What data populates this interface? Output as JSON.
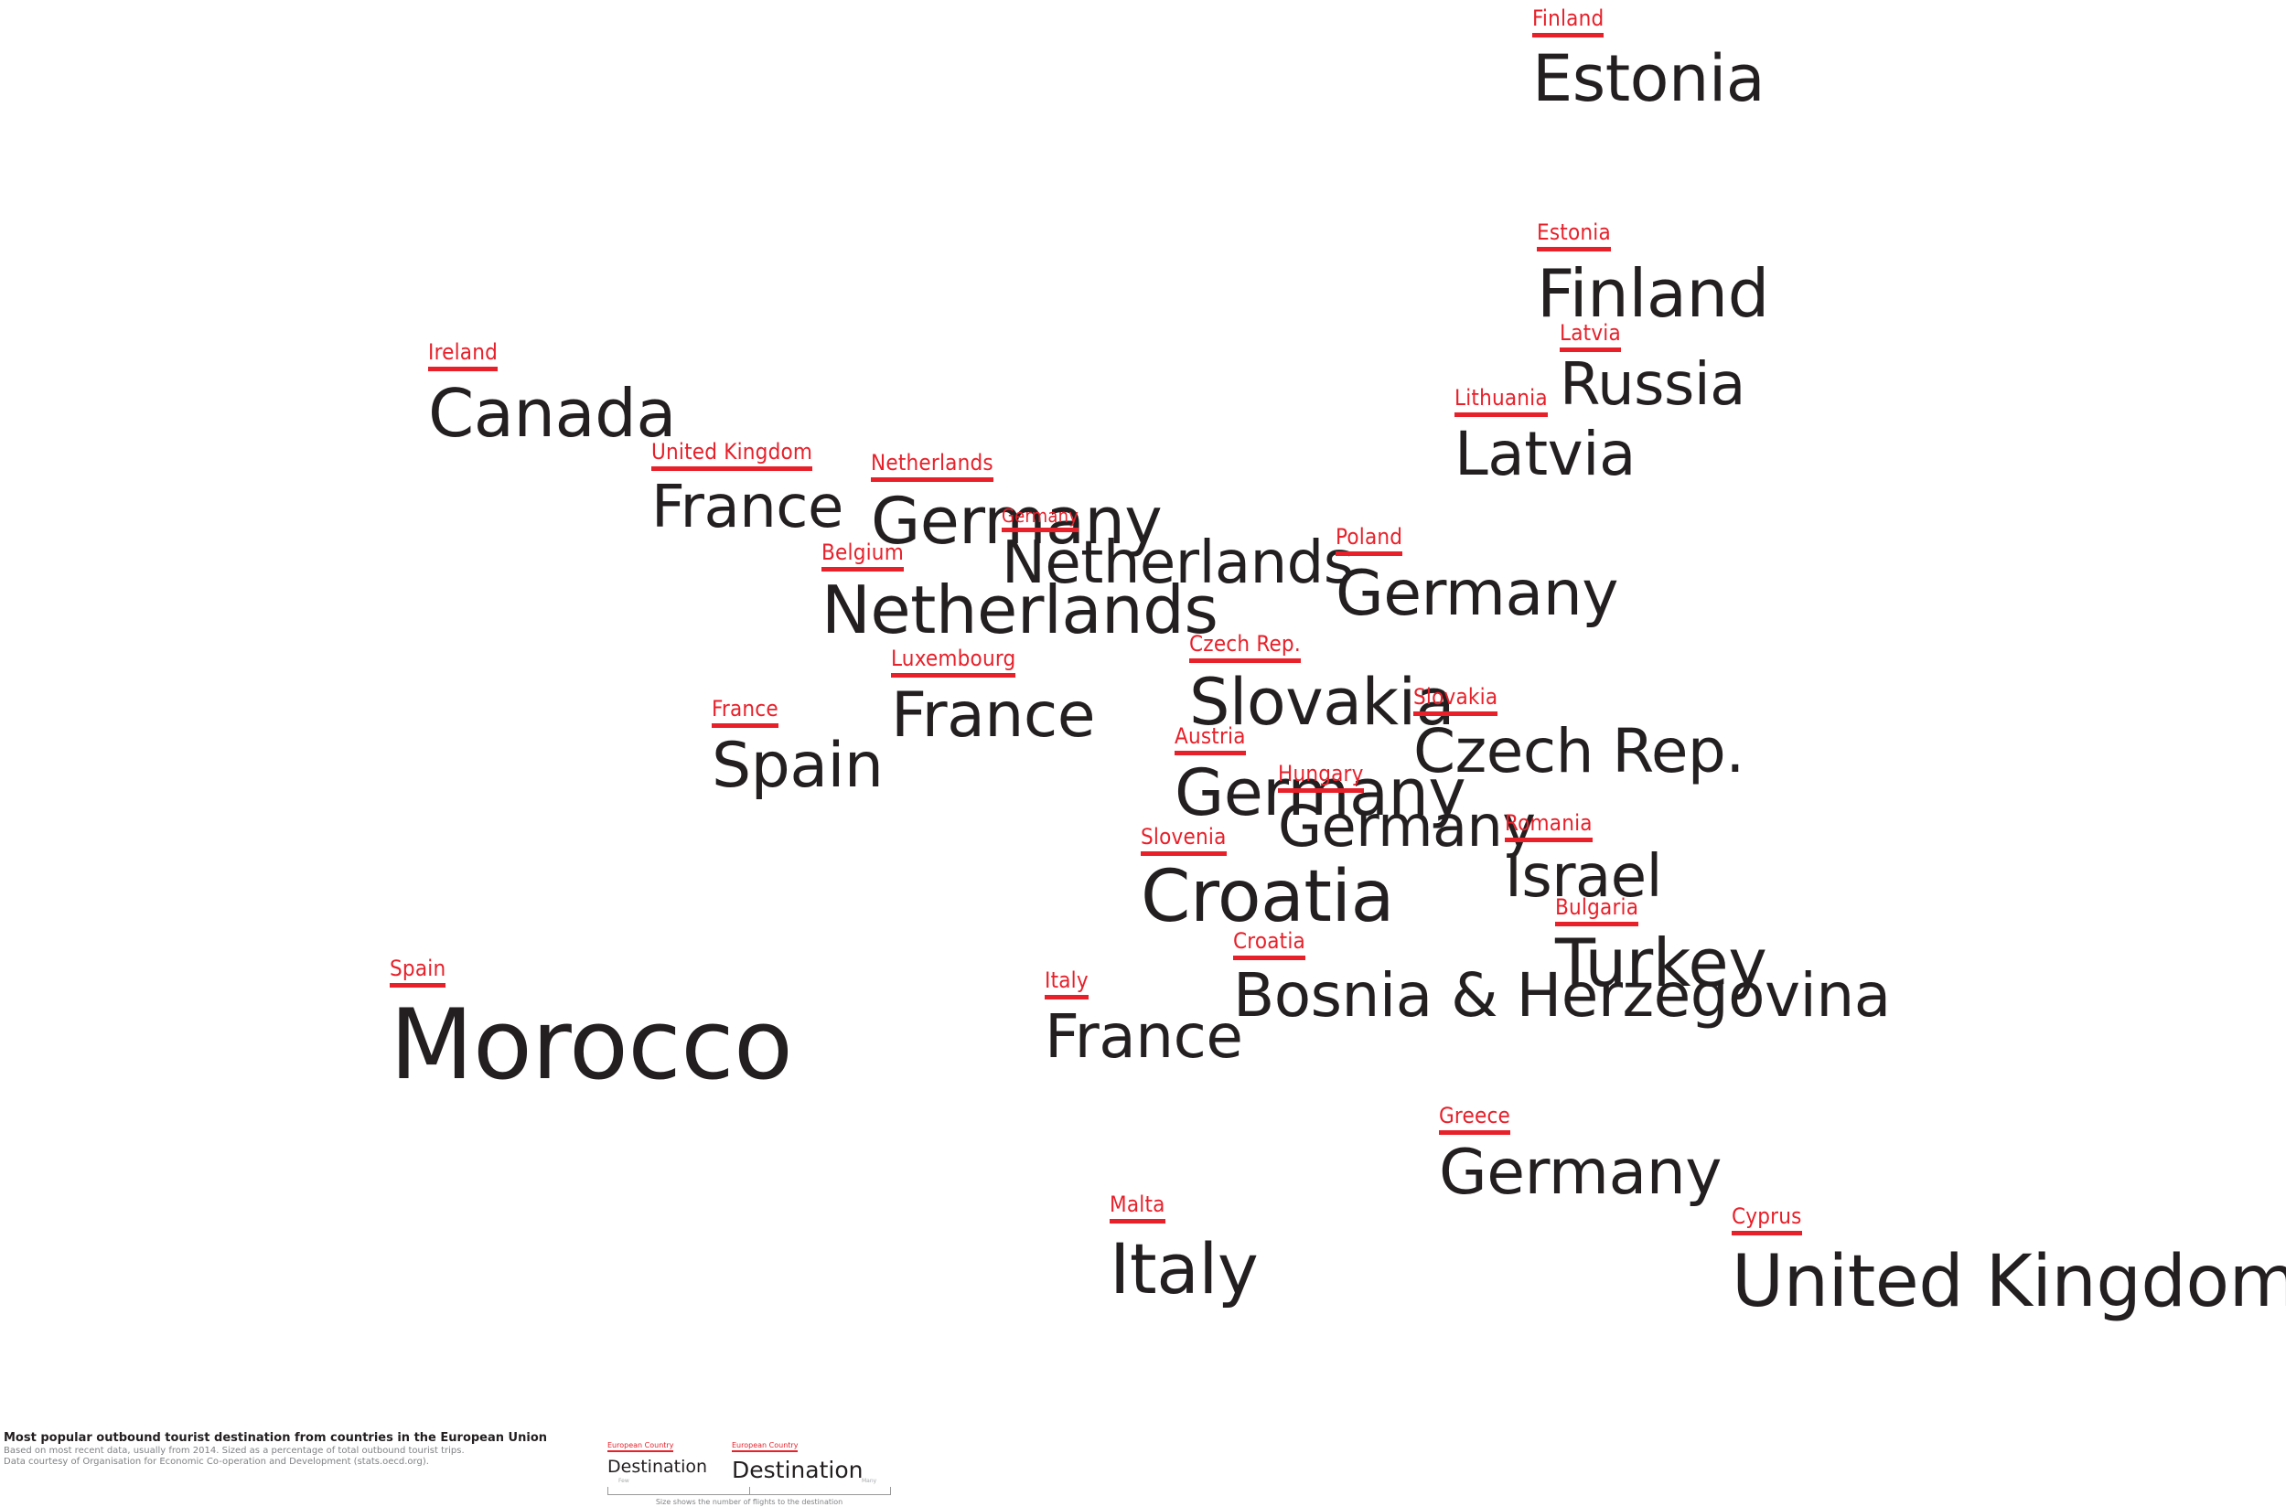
{
  "labels": [
    {
      "origin": "Finland",
      "destination": "Estonia"
    },
    {
      "origin": "Estonia",
      "destination": "Finland"
    },
    {
      "origin": "Latvia",
      "destination": "Russia"
    },
    {
      "origin": "Lithuania",
      "destination": "Latvia"
    },
    {
      "origin": "Ireland",
      "destination": "Canada"
    },
    {
      "origin": "United Kingdom",
      "destination": "France"
    },
    {
      "origin": "Netherlands",
      "destination": "Germany"
    },
    {
      "origin": "Germany",
      "destination": "Netherlands"
    },
    {
      "origin": "Belgium",
      "destination": "Netherlands"
    },
    {
      "origin": "Poland",
      "destination": "Germany"
    },
    {
      "origin": "Czech Rep.",
      "destination": "Slovakia"
    },
    {
      "origin": "Luxembourg",
      "destination": "France"
    },
    {
      "origin": "France",
      "destination": "Spain"
    },
    {
      "origin": "Slovakia",
      "destination": "Czech Rep."
    },
    {
      "origin": "Austria",
      "destination": "Germany"
    },
    {
      "origin": "Hungary",
      "destination": "Germany"
    },
    {
      "origin": "Romania",
      "destination": "Israel"
    },
    {
      "origin": "Slovenia",
      "destination": "Croatia"
    },
    {
      "origin": "Bulgaria",
      "destination": "Turkey"
    },
    {
      "origin": "Croatia",
      "destination": "Bosnia & Herzegovina"
    },
    {
      "origin": "Spain",
      "destination": "Morocco"
    },
    {
      "origin": "Italy",
      "destination": "France"
    },
    {
      "origin": "Greece",
      "destination": "Germany"
    },
    {
      "origin": "Cyprus",
      "destination": "United Kingdom"
    },
    {
      "origin": "Malta",
      "destination": "Italy"
    }
  ],
  "footer": {
    "title": "Most popular outbound tourist destination from countries in the European Union",
    "line1": "Based on most recent data, usually from 2014. Sized as a percentage of total outbound tourist trips.",
    "line2": "Data courtesy of Organisation for Economic Co-operation and Development (stats.oecd.org)."
  },
  "legend": {
    "origin_label": "European Country",
    "destination_label": "Destination",
    "scale_low": "Few",
    "scale_high": "Many",
    "caption": "Size shows the number of flights to the destination"
  },
  "colors": {
    "origin": "#e8202a",
    "destination": "#231f20",
    "background": "#ffffff"
  }
}
